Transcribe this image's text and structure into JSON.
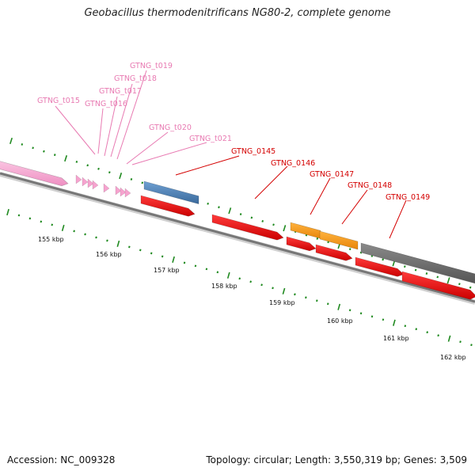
{
  "title": "Geobacillus thermodenitrificans NG80-2, complete genome",
  "footer": {
    "accession": "Accession: NC_009328",
    "summary": "Topology: circular; Length: 3,550,319 bp; Genes: 3,509"
  },
  "colors": {
    "background": "#ffffff",
    "rna_label": "#e87ab2",
    "cds_label": "#d40000",
    "tick": "#208a20",
    "backbone": "#777777",
    "trna_feature": "#f6a3cf",
    "cds_red": "#e60000",
    "blue_feature": "#4a7fb5",
    "orange_feature": "#f39b1c",
    "gray_feature": "#666666"
  },
  "scale_labels": [
    "155 kbp",
    "156 kbp",
    "157 kbp",
    "158 kbp",
    "159 kbp",
    "160 kbp",
    "161 kbp",
    "162 kbp"
  ],
  "rna_labels": [
    "GTNG_t015",
    "GTNG_t016",
    "GTNG_t017",
    "GTNG_t018",
    "GTNG_t019",
    "GTNG_t020",
    "GTNG_t021"
  ],
  "gene_labels": [
    "GTNG_0145",
    "GTNG_0146",
    "GTNG_0147",
    "GTNG_0148",
    "GTNG_0149"
  ]
}
